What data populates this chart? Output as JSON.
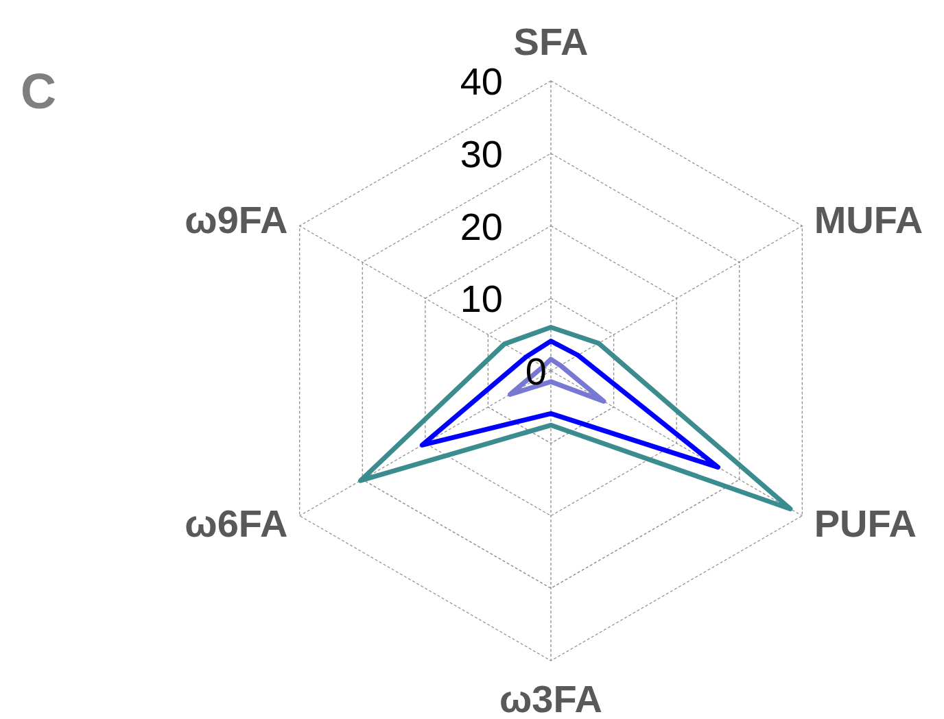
{
  "chart_data": {
    "type": "radar",
    "annotations": [
      "C"
    ],
    "categories": [
      "SFA",
      "MUFA",
      "PUFA",
      "ω3FA",
      "ω6FA",
      "ω9FA"
    ],
    "ylim": [
      0,
      40
    ],
    "yticks": [
      0,
      10,
      20,
      30,
      40
    ],
    "grid": true,
    "line_style": "solid",
    "marker": "none",
    "series": [
      {
        "color": "#3a8c8f",
        "values": [
          6,
          7.6,
          38.1,
          7.5,
          30.3,
          7.4
        ]
      },
      {
        "color": "#0000ff",
        "values": [
          4.1,
          4.3,
          26.6,
          5.9,
          20.5,
          3.9
        ]
      },
      {
        "color": "#7777d4",
        "values": [
          1.6,
          1.5,
          8.4,
          1.5,
          6.5,
          1.2
        ]
      }
    ]
  }
}
